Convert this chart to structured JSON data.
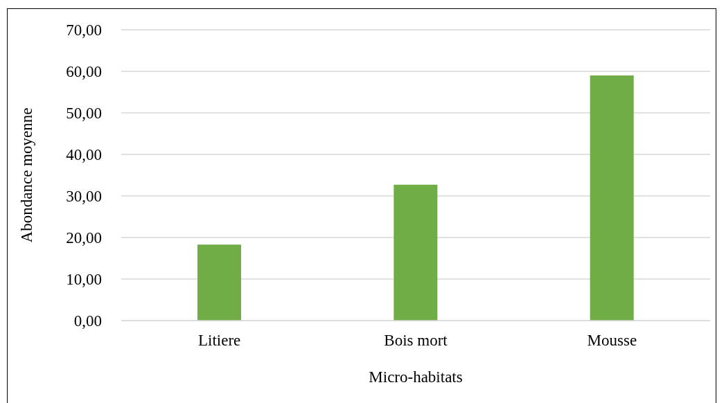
{
  "chart_data": {
    "type": "bar",
    "xlabel": "Micro-habitats",
    "ylabel": "Abondance moyenne",
    "categories": [
      "Litiere",
      "Bois mort",
      "Mousse"
    ],
    "values": [
      18.3,
      32.7,
      59.0
    ],
    "color": "#70ad47",
    "ylim": [
      0,
      70
    ],
    "yticks": [
      {
        "value": 0,
        "label": "0,00"
      },
      {
        "value": 10,
        "label": "10,00"
      },
      {
        "value": 20,
        "label": "20,00"
      },
      {
        "value": 30,
        "label": "30,00"
      },
      {
        "value": 40,
        "label": "40,00"
      },
      {
        "value": 50,
        "label": "50,00"
      },
      {
        "value": 60,
        "label": "60,00"
      },
      {
        "value": 70,
        "label": "70,00"
      }
    ],
    "grid": "y",
    "legend": false
  }
}
